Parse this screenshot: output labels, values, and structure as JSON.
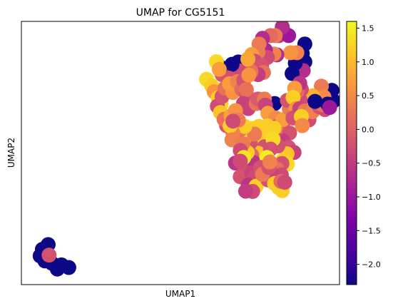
{
  "chart_data": {
    "type": "scatter",
    "title": "UMAP for CG5151",
    "xlabel": "UMAP1",
    "ylabel": "UMAP2",
    "xlim": [
      0,
      100
    ],
    "ylim": [
      0,
      100
    ],
    "colormap": "plasma",
    "colorbar": {
      "min": -2.3,
      "max": 1.6,
      "ticks": [
        1.5,
        1.0,
        0.5,
        0.0,
        -0.5,
        -1.0,
        -1.5,
        -2.0
      ],
      "tick_labels": [
        "1.5",
        "1.0",
        "0.5",
        "0.0",
        "−0.5",
        "−1.0",
        "−1.5",
        "−2.0"
      ]
    },
    "points": [
      {
        "x": 6.6,
        "y": 13.4,
        "v": -2.3
      },
      {
        "x": 8.4,
        "y": 15.2,
        "v": -2.3
      },
      {
        "x": 5.9,
        "y": 10.9,
        "v": -2.3
      },
      {
        "x": 7.4,
        "y": 9.0,
        "v": -2.3
      },
      {
        "x": 9.6,
        "y": 8.1,
        "v": -2.3
      },
      {
        "x": 11.3,
        "y": 5.9,
        "v": -2.3
      },
      {
        "x": 12.6,
        "y": 7.5,
        "v": -2.3
      },
      {
        "x": 14.9,
        "y": 6.5,
        "v": -2.3
      },
      {
        "x": 8.7,
        "y": 11.2,
        "v": -0.2
      },
      {
        "x": 97.6,
        "y": 73.8,
        "v": -2.3
      },
      {
        "x": 98.1,
        "y": 69.8,
        "v": -2.3
      },
      {
        "x": 94.3,
        "y": 75.4,
        "v": 0.3
      },
      {
        "x": 95.1,
        "y": 71.3,
        "v": 0.5
      },
      {
        "x": 91.5,
        "y": 71.7,
        "v": 0.9
      },
      {
        "x": 89.1,
        "y": 84.6,
        "v": -2.3
      },
      {
        "x": 88.6,
        "y": 81.3,
        "v": -0.7
      },
      {
        "x": 88.0,
        "y": 74.2,
        "v": -0.3
      },
      {
        "x": 87.7,
        "y": 69.9,
        "v": -0.3
      },
      {
        "x": 86.6,
        "y": 73.3,
        "v": 0.1
      },
      {
        "x": 85.1,
        "y": 80.2,
        "v": -2.3
      },
      {
        "x": 86.1,
        "y": 84.2,
        "v": -2.3
      },
      {
        "x": 88.3,
        "y": 87.8,
        "v": -2.3
      },
      {
        "x": 89.1,
        "y": 91.4,
        "v": -2.3
      },
      {
        "x": 86.6,
        "y": 88.1,
        "v": 0.4
      },
      {
        "x": 84.6,
        "y": 88.1,
        "v": 0.6
      },
      {
        "x": 87.5,
        "y": 76.5,
        "v": -0.6
      },
      {
        "x": 85.9,
        "y": 74.6,
        "v": 0.7
      },
      {
        "x": 79.6,
        "y": 68.8,
        "v": -2.3
      },
      {
        "x": 80.9,
        "y": 94.6,
        "v": -0.6
      },
      {
        "x": 82.6,
        "y": 95.8,
        "v": -0.7
      },
      {
        "x": 84.0,
        "y": 94.6,
        "v": -1.0
      },
      {
        "x": 82.0,
        "y": 97.9,
        "v": -0.7
      },
      {
        "x": 79.8,
        "y": 94.6,
        "v": 0.3
      },
      {
        "x": 80.3,
        "y": 87.3,
        "v": -0.7
      },
      {
        "x": 79.4,
        "y": 87.6,
        "v": 0.4
      },
      {
        "x": 78.3,
        "y": 94.6,
        "v": 0.1
      },
      {
        "x": 76.7,
        "y": 89.1,
        "v": -0.8
      },
      {
        "x": 77.3,
        "y": 86.3,
        "v": -0.3
      },
      {
        "x": 75.8,
        "y": 93.6,
        "v": -0.7
      },
      {
        "x": 74.7,
        "y": 91.4,
        "v": 0.3
      },
      {
        "x": 74.4,
        "y": 88.3,
        "v": 0.3
      },
      {
        "x": 72.4,
        "y": 87.4,
        "v": 0.7
      },
      {
        "x": 73.3,
        "y": 84.9,
        "v": -0.3
      },
      {
        "x": 75.5,
        "y": 83.2,
        "v": -0.2
      },
      {
        "x": 76.1,
        "y": 80.6,
        "v": 0.2
      },
      {
        "x": 74.4,
        "y": 79.8,
        "v": -0.5
      },
      {
        "x": 72.2,
        "y": 81.0,
        "v": 0.2
      },
      {
        "x": 68.2,
        "y": 84.6,
        "v": -2.3
      },
      {
        "x": 68.5,
        "y": 81.2,
        "v": -0.3
      },
      {
        "x": 71.2,
        "y": 85.7,
        "v": 0.8
      },
      {
        "x": 66.2,
        "y": 83.7,
        "v": -2.3
      },
      {
        "x": 65.1,
        "y": 78.5,
        "v": -0.2
      },
      {
        "x": 63.1,
        "y": 79.8,
        "v": -0.2
      },
      {
        "x": 62.6,
        "y": 82.6,
        "v": -2.3
      },
      {
        "x": 61.3,
        "y": 84.7,
        "v": 1.3
      },
      {
        "x": 62.2,
        "y": 81.8,
        "v": 0.7
      },
      {
        "x": 58.2,
        "y": 78.0,
        "v": 1.3
      },
      {
        "x": 59.8,
        "y": 75.6,
        "v": 1.2
      },
      {
        "x": 60.6,
        "y": 73.3,
        "v": 0.6
      },
      {
        "x": 61.9,
        "y": 71.0,
        "v": 1.2
      },
      {
        "x": 62.8,
        "y": 68.6,
        "v": 1.3
      },
      {
        "x": 61.6,
        "y": 67.8,
        "v": -0.3
      },
      {
        "x": 62.6,
        "y": 65.4,
        "v": 1.1
      },
      {
        "x": 63.1,
        "y": 71.5,
        "v": -0.2
      },
      {
        "x": 64.0,
        "y": 74.6,
        "v": 0.2
      },
      {
        "x": 66.5,
        "y": 73.0,
        "v": 0.6
      },
      {
        "x": 65.4,
        "y": 76.3,
        "v": 0.7
      },
      {
        "x": 67.9,
        "y": 77.1,
        "v": 0.4
      },
      {
        "x": 69.3,
        "y": 74.2,
        "v": 0.1
      },
      {
        "x": 70.7,
        "y": 72.6,
        "v": -0.2
      },
      {
        "x": 69.9,
        "y": 77.6,
        "v": -0.2
      },
      {
        "x": 71.5,
        "y": 79.6,
        "v": 0.6
      },
      {
        "x": 70.7,
        "y": 74.1,
        "v": 0.2
      },
      {
        "x": 69.8,
        "y": 68.8,
        "v": -0.4
      },
      {
        "x": 71.3,
        "y": 66.9,
        "v": -0.4
      },
      {
        "x": 73.8,
        "y": 68.8,
        "v": 0.2
      },
      {
        "x": 74.4,
        "y": 70.5,
        "v": -0.1
      },
      {
        "x": 76.4,
        "y": 70.5,
        "v": 0.3
      },
      {
        "x": 76.7,
        "y": 68.2,
        "v": -0.4
      },
      {
        "x": 77.5,
        "y": 65.1,
        "v": 0.7
      },
      {
        "x": 80.0,
        "y": 63.3,
        "v": 0.5
      },
      {
        "x": 80.3,
        "y": 60.1,
        "v": -0.2
      },
      {
        "x": 82.2,
        "y": 61.5,
        "v": -0.2
      },
      {
        "x": 80.6,
        "y": 57.6,
        "v": 0.3
      },
      {
        "x": 82.2,
        "y": 62.7,
        "v": 0.7
      },
      {
        "x": 84.2,
        "y": 66.9,
        "v": 0.3
      },
      {
        "x": 83.6,
        "y": 70.0,
        "v": -0.2
      },
      {
        "x": 85.4,
        "y": 71.1,
        "v": 1.2
      },
      {
        "x": 86.3,
        "y": 66.8,
        "v": 0.6
      },
      {
        "x": 85.4,
        "y": 63.3,
        "v": -0.2
      },
      {
        "x": 84.3,
        "y": 57.6,
        "v": -0.2
      },
      {
        "x": 82.2,
        "y": 54.6,
        "v": -0.5
      },
      {
        "x": 84.0,
        "y": 52.1,
        "v": -0.2
      },
      {
        "x": 85.7,
        "y": 50.2,
        "v": -0.4
      },
      {
        "x": 83.5,
        "y": 49.7,
        "v": 1.1
      },
      {
        "x": 82.2,
        "y": 47.2,
        "v": 1.2
      },
      {
        "x": 83.6,
        "y": 45.8,
        "v": 1.3
      },
      {
        "x": 81.9,
        "y": 46.0,
        "v": -0.2
      },
      {
        "x": 80.6,
        "y": 52.7,
        "v": -0.2
      },
      {
        "x": 79.1,
        "y": 56.4,
        "v": -0.2
      },
      {
        "x": 76.7,
        "y": 58.5,
        "v": 1.1
      },
      {
        "x": 75.2,
        "y": 55.6,
        "v": 1.2
      },
      {
        "x": 76.4,
        "y": 52.4,
        "v": -0.2
      },
      {
        "x": 74.4,
        "y": 49.9,
        "v": 1.1
      },
      {
        "x": 72.4,
        "y": 49.2,
        "v": 0.1
      },
      {
        "x": 73.0,
        "y": 46.4,
        "v": -0.6
      },
      {
        "x": 75.0,
        "y": 44.3,
        "v": -0.5
      },
      {
        "x": 71.9,
        "y": 53.9,
        "v": -0.2
      },
      {
        "x": 70.2,
        "y": 55.6,
        "v": 0.5
      },
      {
        "x": 69.6,
        "y": 58.5,
        "v": 1.2
      },
      {
        "x": 72.4,
        "y": 59.4,
        "v": 1.3
      },
      {
        "x": 74.7,
        "y": 60.1,
        "v": 1.2
      },
      {
        "x": 73.3,
        "y": 57.2,
        "v": 0.3
      },
      {
        "x": 77.3,
        "y": 60.3,
        "v": 1.2
      },
      {
        "x": 79.4,
        "y": 59.4,
        "v": 1.2
      },
      {
        "x": 79.1,
        "y": 55.2,
        "v": 1.3
      },
      {
        "x": 78.3,
        "y": 51.5,
        "v": -0.2
      },
      {
        "x": 77.2,
        "y": 48.3,
        "v": 1.5
      },
      {
        "x": 71.0,
        "y": 50.2,
        "v": 1.2
      },
      {
        "x": 68.8,
        "y": 58.9,
        "v": 0.2
      },
      {
        "x": 70.2,
        "y": 60.1,
        "v": 1.2
      },
      {
        "x": 66.5,
        "y": 57.6,
        "v": 0.4
      },
      {
        "x": 64.5,
        "y": 60.4,
        "v": -0.2
      },
      {
        "x": 63.7,
        "y": 62.8,
        "v": 0.2
      },
      {
        "x": 65.9,
        "y": 64.1,
        "v": 0.8
      },
      {
        "x": 67.3,
        "y": 66.1,
        "v": 0.6
      },
      {
        "x": 68.2,
        "y": 62.5,
        "v": 0.3
      },
      {
        "x": 65.6,
        "y": 60.3,
        "v": 1.2
      },
      {
        "x": 66.5,
        "y": 62.1,
        "v": -0.3
      },
      {
        "x": 66.2,
        "y": 55.0,
        "v": 0.4
      },
      {
        "x": 69.6,
        "y": 53.5,
        "v": 0.3
      },
      {
        "x": 68.8,
        "y": 51.0,
        "v": -0.3
      },
      {
        "x": 67.3,
        "y": 46.2,
        "v": -0.6
      },
      {
        "x": 68.8,
        "y": 41.0,
        "v": -0.2
      },
      {
        "x": 70.2,
        "y": 42.7,
        "v": -0.2
      },
      {
        "x": 72.4,
        "y": 42.5,
        "v": -0.4
      },
      {
        "x": 73.0,
        "y": 40.5,
        "v": -0.3
      },
      {
        "x": 71.3,
        "y": 37.8,
        "v": -0.6
      },
      {
        "x": 73.8,
        "y": 37.4,
        "v": 1.2
      },
      {
        "x": 72.7,
        "y": 35.4,
        "v": -0.3
      },
      {
        "x": 70.5,
        "y": 35.5,
        "v": -0.5
      },
      {
        "x": 69.9,
        "y": 48.3,
        "v": 1.4
      },
      {
        "x": 68.8,
        "y": 46.9,
        "v": -0.3
      },
      {
        "x": 77.5,
        "y": 39.8,
        "v": -0.2
      },
      {
        "x": 80.0,
        "y": 40.8,
        "v": -0.2
      },
      {
        "x": 80.3,
        "y": 43.9,
        "v": 0.2
      },
      {
        "x": 81.7,
        "y": 41.7,
        "v": -0.3
      },
      {
        "x": 78.6,
        "y": 42.0,
        "v": -0.4
      },
      {
        "x": 79.6,
        "y": 38.4,
        "v": 1.2
      },
      {
        "x": 80.9,
        "y": 36.8,
        "v": 1.2
      },
      {
        "x": 82.0,
        "y": 35.7,
        "v": 1.2
      },
      {
        "x": 81.6,
        "y": 39.2,
        "v": 0.1
      },
      {
        "x": 82.8,
        "y": 38.9,
        "v": -0.3
      },
      {
        "x": 75.2,
        "y": 44.5,
        "v": -0.2
      },
      {
        "x": 75.8,
        "y": 41.9,
        "v": 0.3
      },
      {
        "x": 77.8,
        "y": 44.5,
        "v": -0.2
      },
      {
        "x": 78.1,
        "y": 46.6,
        "v": 0.4
      },
      {
        "x": 87.5,
        "y": 66.9,
        "v": -0.4
      },
      {
        "x": 89.1,
        "y": 66.0,
        "v": 0.3
      },
      {
        "x": 90.4,
        "y": 62.6,
        "v": -0.3
      },
      {
        "x": 91.5,
        "y": 65.7,
        "v": 0.4
      },
      {
        "x": 93.7,
        "y": 67.5,
        "v": -0.2
      },
      {
        "x": 95.4,
        "y": 66.5,
        "v": -0.3
      },
      {
        "x": 94.6,
        "y": 68.3,
        "v": 0.2
      },
      {
        "x": 96.3,
        "y": 68.6,
        "v": -2.3
      },
      {
        "x": 96.9,
        "y": 67.3,
        "v": -1.0
      },
      {
        "x": 92.3,
        "y": 69.6,
        "v": -2.3
      },
      {
        "x": 88.0,
        "y": 63.9,
        "v": 1.2
      },
      {
        "x": 88.3,
        "y": 60.4,
        "v": 0.5
      }
    ]
  }
}
